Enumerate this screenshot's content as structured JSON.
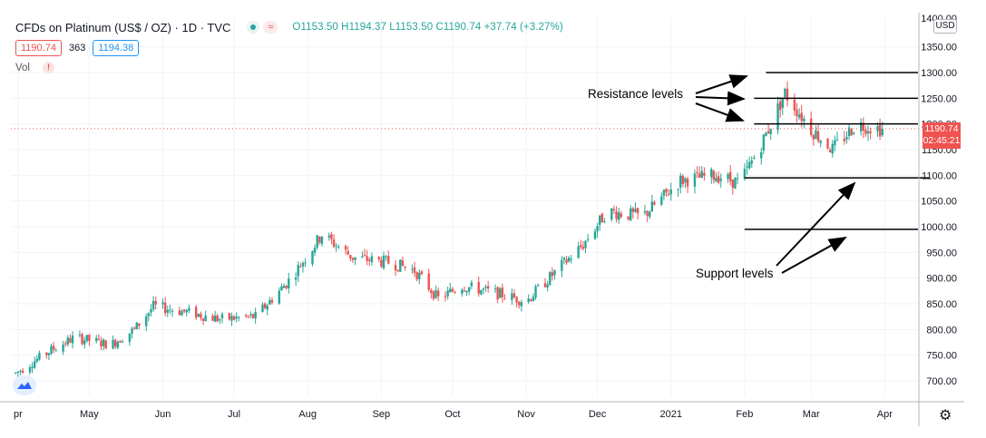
{
  "header": {
    "title": "CFDs on Platinum (US$ / OZ) · 1D · TVC",
    "ohlc": "O1153.50 H1194.37 L1153.50 C1190.74 +37.74 (+3.27%)",
    "bid": "1190.74",
    "spread": "363",
    "ask": "1194.38",
    "volume_label": "Vol",
    "warn_glyph": "!",
    "wave_glyph": "≈"
  },
  "price_axis": {
    "currency": "USD",
    "current_price": "1190.74",
    "countdown": "02:45:21"
  },
  "annotations": {
    "resistance": "Resistance levels",
    "support": "Support levels"
  },
  "chart_data": {
    "type": "candlestick",
    "title": "CFDs on Platinum (US$ / OZ)",
    "ylim": [
      650,
      1400
    ],
    "y_ticks": [
      "700.00",
      "750.00",
      "800.00",
      "850.00",
      "900.00",
      "950.00",
      "1000.00",
      "1050.00",
      "1100.00",
      "1150.00",
      "1200.00",
      "1250.00",
      "1300.00",
      "1350.00"
    ],
    "y_top_partial": "1400.00",
    "x_labels": [
      {
        "label": "pr",
        "date": "2020-04-01"
      },
      {
        "label": "May",
        "date": "2020-05-01"
      },
      {
        "label": "Jun",
        "date": "2020-06-01"
      },
      {
        "label": "Jul",
        "date": "2020-07-01"
      },
      {
        "label": "Aug",
        "date": "2020-08-01"
      },
      {
        "label": "Sep",
        "date": "2020-09-01"
      },
      {
        "label": "Oct",
        "date": "2020-10-01"
      },
      {
        "label": "Nov",
        "date": "2020-11-01"
      },
      {
        "label": "Dec",
        "date": "2020-12-01"
      },
      {
        "label": "2021",
        "date": "2021-01-01"
      },
      {
        "label": "Feb",
        "date": "2021-02-01"
      },
      {
        "label": "Mar",
        "date": "2021-03-01"
      },
      {
        "label": "Apr",
        "date": "2021-04-01"
      }
    ],
    "trend_closes": [
      [
        "2020-03-31",
        715
      ],
      [
        "2020-04-15",
        760
      ],
      [
        "2020-04-25",
        785
      ],
      [
        "2020-05-10",
        770
      ],
      [
        "2020-05-20",
        800
      ],
      [
        "2020-05-28",
        845
      ],
      [
        "2020-06-10",
        835
      ],
      [
        "2020-06-25",
        820
      ],
      [
        "2020-07-10",
        825
      ],
      [
        "2020-07-25",
        900
      ],
      [
        "2020-08-07",
        985
      ],
      [
        "2020-08-20",
        940
      ],
      [
        "2020-09-05",
        930
      ],
      [
        "2020-09-15",
        915
      ],
      [
        "2020-09-25",
        860
      ],
      [
        "2020-10-05",
        885
      ],
      [
        "2020-10-20",
        870
      ],
      [
        "2020-11-01",
        855
      ],
      [
        "2020-11-15",
        920
      ],
      [
        "2020-11-25",
        965
      ],
      [
        "2020-12-05",
        1030
      ],
      [
        "2020-12-20",
        1020
      ],
      [
        "2021-01-05",
        1090
      ],
      [
        "2021-01-20",
        1100
      ],
      [
        "2021-01-30",
        1085
      ],
      [
        "2021-02-08",
        1160
      ],
      [
        "2021-02-18",
        1260
      ],
      [
        "2021-03-01",
        1190
      ],
      [
        "2021-03-10",
        1150
      ],
      [
        "2021-03-20",
        1200
      ],
      [
        "2021-03-31",
        1190
      ]
    ],
    "last": {
      "open": 1153.5,
      "high": 1194.37,
      "low": 1153.5,
      "close": 1190.74
    },
    "resistance_levels": [
      {
        "price": 1300,
        "from": "2021-02-10",
        "to": "2021-04-15"
      },
      {
        "price": 1250,
        "from": "2021-02-05",
        "to": "2021-04-15"
      },
      {
        "price": 1200,
        "from": "2021-02-05",
        "to": "2021-04-15"
      }
    ],
    "support_levels": [
      {
        "price": 1095,
        "from": "2021-02-01",
        "to": "2021-04-20"
      },
      {
        "price": 995,
        "from": "2021-02-01",
        "to": "2021-04-15"
      }
    ],
    "colors": {
      "up": "#26a69a",
      "down": "#ef5350",
      "grid": "#f0f3fa",
      "price_line": "#ef5350"
    }
  }
}
